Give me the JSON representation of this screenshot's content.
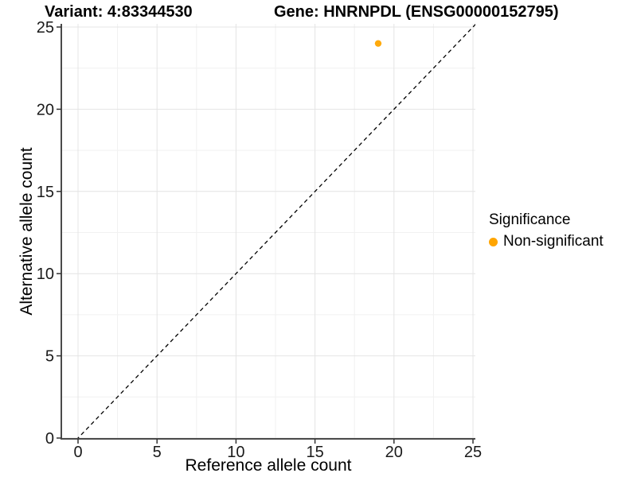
{
  "chart_data": {
    "type": "scatter",
    "titles": {
      "left": "Variant: 4:83344530",
      "right": "Gene: HNRNPDL (ENSG00000152795)"
    },
    "xlabel": "Reference allele count",
    "ylabel": "Alternative allele count",
    "xticks": [
      0,
      5,
      10,
      15,
      20,
      25
    ],
    "yticks": [
      0,
      5,
      10,
      15,
      20,
      25
    ],
    "xlim": [
      -1.06,
      25.35
    ],
    "ylim": [
      -0.05,
      25.2
    ],
    "grid": true,
    "points": [
      {
        "x": 19,
        "y": 24,
        "series": "Non-significant"
      }
    ],
    "reference_line": {
      "kind": "identity y=x",
      "dashed": true,
      "color": "#000000"
    },
    "legend": {
      "title": "Significance",
      "position": "right",
      "items": [
        {
          "label": "Non-significant",
          "color": "#FFA500",
          "marker": "circle"
        }
      ]
    },
    "colors": {
      "point": "#FFA500",
      "grid_major": "#E4E4E4",
      "grid_minor": "#F1F1F1",
      "axis_line": "#4A4A4A",
      "tick_mark": "#333333",
      "tick_label": "#1A1A1A",
      "background": "#FFFFFF"
    }
  }
}
